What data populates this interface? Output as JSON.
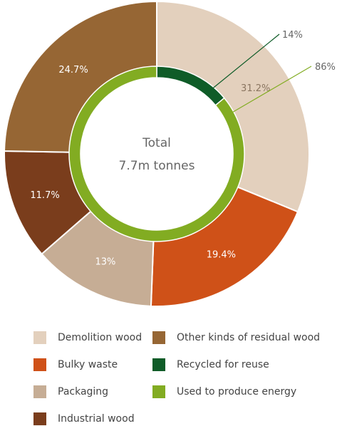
{
  "chart_data": {
    "type": "pie",
    "title": "",
    "center_label": {
      "line1": "Total",
      "line2": "7.7m tonnes"
    },
    "outer_ring": [
      {
        "label": "Demolition wood",
        "value": 31.2,
        "display": "31.2%",
        "color": "#e3d0bd"
      },
      {
        "label": "Bulky waste",
        "value": 19.4,
        "display": "19.4%",
        "color": "#cf5118"
      },
      {
        "label": "Packaging",
        "value": 13,
        "display": "13%",
        "color": "#c6ad95"
      },
      {
        "label": "Industrial wood",
        "value": 11.7,
        "display": "11.7%",
        "color": "#7a3d1c"
      },
      {
        "label": "Other kinds of residual wood",
        "value": 24.7,
        "display": "24.7%",
        "color": "#966634"
      }
    ],
    "inner_ring": [
      {
        "label": "Recycled for reuse",
        "value": 14,
        "display": "14%",
        "color": "#0f5c28"
      },
      {
        "label": "Used to produce energy",
        "value": 86,
        "display": "86%",
        "color": "#82ac22"
      }
    ]
  },
  "legend": [
    {
      "label": "Demolition wood",
      "color": "#e3d0bd"
    },
    {
      "label": "Other kinds of residual wood",
      "color": "#966634"
    },
    {
      "label": "Bulky waste",
      "color": "#cf5118"
    },
    {
      "label": "Recycled for reuse",
      "color": "#0f5c28"
    },
    {
      "label": "Packaging",
      "color": "#c6ad95"
    },
    {
      "label": "Used to produce energy",
      "color": "#82ac22"
    },
    {
      "label": "Industrial wood",
      "color": "#7a3d1c"
    }
  ]
}
